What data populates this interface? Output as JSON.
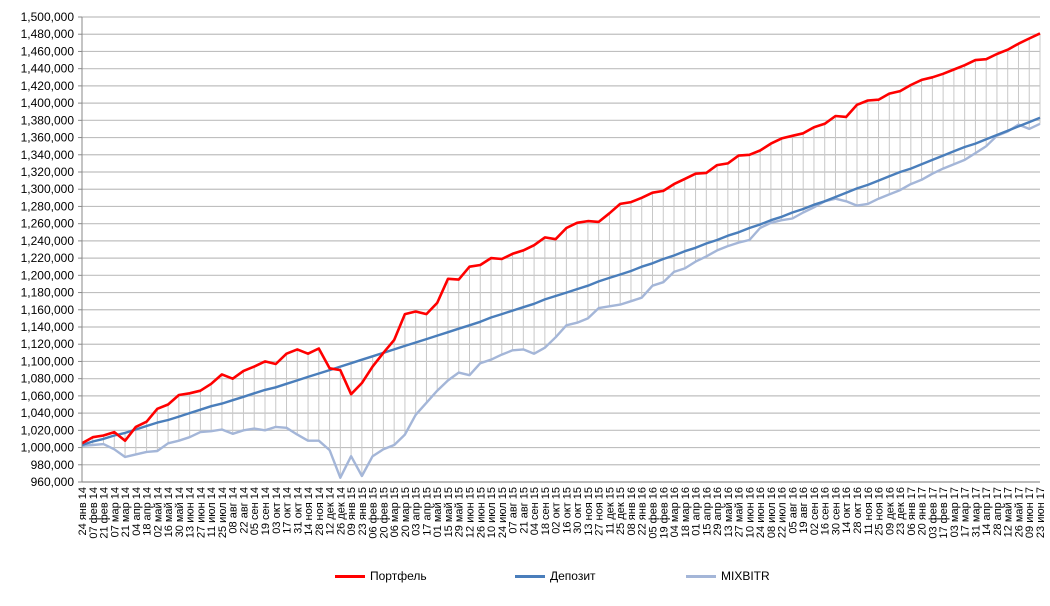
{
  "chart_data": {
    "type": "line",
    "title": "",
    "xlabel": "",
    "ylabel": "",
    "ylim": [
      960000,
      1500000
    ],
    "ytick_step": 20000,
    "grid": true,
    "drop_lines": true,
    "legend_position": "bottom",
    "categories": [
      "24 янв 14",
      "07 фев 14",
      "21 фев 14",
      "07 мар 14",
      "21 мар 14",
      "04 апр 14",
      "18 апр 14",
      "02 май 14",
      "16 май 14",
      "30 май 14",
      "13 июн 14",
      "27 июн 14",
      "11 июл 14",
      "25 июл 14",
      "08 авг 14",
      "22 авг 14",
      "05 сен 14",
      "19 сен 14",
      "03 окт 14",
      "17 окт 14",
      "31 окт 14",
      "14 ноя 14",
      "28 ноя 14",
      "12 дек 14",
      "26 дек 14",
      "09 янв 15",
      "23 янв 15",
      "06 фев 15",
      "20 фев 15",
      "06 мар 15",
      "20 мар 15",
      "03 апр 15",
      "17 апр 15",
      "01 май 15",
      "15 май 15",
      "29 май 15",
      "12 июн 15",
      "26 июн 15",
      "10 июл 15",
      "24 июл 15",
      "07 авг 15",
      "21 авг 15",
      "04 сен 15",
      "18 сен 15",
      "02 окт 15",
      "16 окт 15",
      "30 окт 15",
      "13 ноя 15",
      "27 ноя 15",
      "11 дек 15",
      "25 дек 15",
      "08 янв 16",
      "22 янв 16",
      "05 фев 16",
      "19 фев 16",
      "04 мар 16",
      "18 мар 16",
      "01 апр 16",
      "15 апр 16",
      "29 апр 16",
      "13 май 16",
      "27 май 16",
      "10 июн 16",
      "24 июн 16",
      "08 июл 16",
      "22 июл 16",
      "05 авг 16",
      "19 авг 16",
      "02 сен 16",
      "16 сен 16",
      "30 сен 16",
      "14 окт 16",
      "28 окт 16",
      "11 ноя 16",
      "25 ноя 16",
      "09 дек 16",
      "23 дек 16",
      "06 янв 17",
      "20 янв 17",
      "03 фев 17",
      "17 фев 17",
      "03 мар 17",
      "17 мар 17",
      "31 мар 17",
      "14 апр 17",
      "28 апр 17",
      "12 май 17",
      "26 май 17",
      "09 июн 17",
      "23 июн 17"
    ],
    "ytick_labels": [
      "960,000",
      "980,000",
      "1,000,000",
      "1,020,000",
      "1,040,000",
      "1,060,000",
      "1,080,000",
      "1,100,000",
      "1,120,000",
      "1,140,000",
      "1,160,000",
      "1,180,000",
      "1,200,000",
      "1,220,000",
      "1,240,000",
      "1,260,000",
      "1,280,000",
      "1,300,000",
      "1,320,000",
      "1,340,000",
      "1,360,000",
      "1,380,000",
      "1,400,000",
      "1,420,000",
      "1,440,000",
      "1,460,000",
      "1,480,000",
      "1,500,000"
    ],
    "series": [
      {
        "name": "Портфель",
        "color": "#ff0000",
        "values": [
          1005000,
          1012000,
          1014000,
          1018000,
          1008000,
          1024000,
          1030000,
          1045000,
          1050000,
          1061000,
          1063000,
          1066000,
          1074000,
          1085000,
          1080000,
          1089000,
          1094000,
          1100000,
          1097000,
          1109000,
          1114000,
          1109000,
          1115000,
          1092000,
          1090000,
          1062000,
          1075000,
          1094000,
          1110000,
          1125000,
          1155000,
          1158000,
          1155000,
          1168000,
          1196000,
          1195000,
          1210000,
          1212000,
          1220000,
          1219000,
          1225000,
          1229000,
          1235000,
          1244000,
          1242000,
          1255000,
          1261000,
          1263000,
          1262000,
          1272000,
          1283000,
          1285000,
          1290000,
          1296000,
          1298000,
          1306000,
          1312000,
          1318000,
          1319000,
          1328000,
          1330000,
          1339000,
          1340000,
          1345000,
          1353000,
          1359000,
          1362000,
          1365000,
          1372000,
          1376000,
          1385000,
          1384000,
          1398000,
          1403000,
          1404000,
          1411000,
          1414000,
          1421000,
          1427000,
          1430000,
          1434000,
          1439000,
          1444000,
          1450000,
          1451000,
          1457000,
          1462000,
          1469000,
          1475000,
          1481000
        ]
      },
      {
        "name": "Депозит",
        "color": "#4a7ebb",
        "values": [
          1003000,
          1007000,
          1010000,
          1014000,
          1017000,
          1021000,
          1025000,
          1029000,
          1032000,
          1036000,
          1040000,
          1044000,
          1048000,
          1051000,
          1055000,
          1059000,
          1063000,
          1067000,
          1070000,
          1074000,
          1078000,
          1082000,
          1086000,
          1090000,
          1094000,
          1098000,
          1102000,
          1106000,
          1110000,
          1114000,
          1118000,
          1122000,
          1126000,
          1130000,
          1134000,
          1138000,
          1142000,
          1146000,
          1151000,
          1155000,
          1159000,
          1163000,
          1167000,
          1172000,
          1176000,
          1180000,
          1184000,
          1188000,
          1193000,
          1197000,
          1201000,
          1205000,
          1210000,
          1214000,
          1219000,
          1223000,
          1228000,
          1232000,
          1237000,
          1241000,
          1246000,
          1250000,
          1255000,
          1259000,
          1264000,
          1268000,
          1273000,
          1277000,
          1282000,
          1286000,
          1291000,
          1296000,
          1301000,
          1305000,
          1310000,
          1315000,
          1320000,
          1324000,
          1329000,
          1334000,
          1339000,
          1344000,
          1349000,
          1353000,
          1358000,
          1363000,
          1368000,
          1373000,
          1378000,
          1383000
        ]
      },
      {
        "name": "MIXBITR",
        "color": "#a4b6d8",
        "values": [
          1002000,
          1003000,
          1004000,
          998000,
          989000,
          992000,
          995000,
          996000,
          1005000,
          1008000,
          1012000,
          1018000,
          1019000,
          1021000,
          1016000,
          1020000,
          1022000,
          1020000,
          1024000,
          1023000,
          1015000,
          1008000,
          1008000,
          997000,
          965000,
          990000,
          967000,
          990000,
          998000,
          1003000,
          1015000,
          1038000,
          1052000,
          1066000,
          1078000,
          1087000,
          1084000,
          1098000,
          1102000,
          1108000,
          1113000,
          1114000,
          1109000,
          1116000,
          1128000,
          1142000,
          1145000,
          1150000,
          1162000,
          1164000,
          1166000,
          1170000,
          1174000,
          1188000,
          1192000,
          1204000,
          1208000,
          1216000,
          1222000,
          1229000,
          1234000,
          1238000,
          1241000,
          1255000,
          1261000,
          1264000,
          1266000,
          1273000,
          1279000,
          1286000,
          1289000,
          1286000,
          1281000,
          1283000,
          1289000,
          1294000,
          1299000,
          1306000,
          1311000,
          1318000,
          1324000,
          1329000,
          1334000,
          1342000,
          1350000,
          1362000,
          1367000,
          1375000,
          1370000,
          1376000
        ]
      }
    ]
  },
  "legend": {
    "items": [
      {
        "label": "Портфель",
        "color": "#ff0000"
      },
      {
        "label": "Депозит",
        "color": "#4a7ebb"
      },
      {
        "label": "MIXBITR",
        "color": "#a4b6d8"
      }
    ]
  }
}
